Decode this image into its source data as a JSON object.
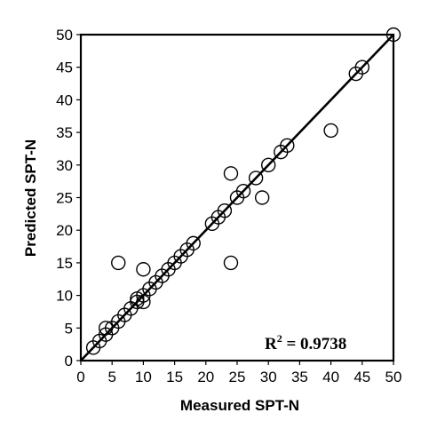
{
  "chart_data": {
    "type": "scatter",
    "xlabel": "Measured SPT-N",
    "ylabel": "Predicted SPT-N",
    "xlim": [
      0,
      50
    ],
    "ylim": [
      0,
      50
    ],
    "xticks": [
      "0",
      "5",
      "10",
      "15",
      "20",
      "25",
      "30",
      "35",
      "40",
      "45",
      "50"
    ],
    "yticks": [
      "0",
      "5",
      "10",
      "15",
      "20",
      "25",
      "30",
      "35",
      "40",
      "45",
      "50"
    ],
    "grid": false,
    "annotation": {
      "prefix": "R",
      "superscript": "2",
      "suffix": " = 0.9738"
    },
    "reference_line": {
      "from": [
        0,
        0
      ],
      "to": [
        50,
        50
      ]
    },
    "series": [
      {
        "points": [
          [
            2,
            2
          ],
          [
            3,
            3
          ],
          [
            4,
            4
          ],
          [
            4,
            5
          ],
          [
            5,
            5
          ],
          [
            6,
            6
          ],
          [
            7,
            7
          ],
          [
            8,
            8
          ],
          [
            9,
            9
          ],
          [
            9,
            9.5
          ],
          [
            10,
            9
          ],
          [
            10,
            10
          ],
          [
            11,
            11
          ],
          [
            12,
            12
          ],
          [
            13,
            13
          ],
          [
            14,
            14
          ],
          [
            15,
            15
          ],
          [
            16,
            16
          ],
          [
            17,
            17
          ],
          [
            18,
            18
          ],
          [
            21,
            21
          ],
          [
            22,
            22
          ],
          [
            23,
            23
          ],
          [
            25,
            25
          ],
          [
            26,
            26
          ],
          [
            28,
            28
          ],
          [
            30,
            30
          ],
          [
            32,
            32
          ],
          [
            33,
            33
          ],
          [
            44,
            44
          ],
          [
            45,
            45
          ],
          [
            50,
            50
          ],
          [
            6,
            15
          ],
          [
            10,
            14
          ],
          [
            24,
            15
          ],
          [
            24,
            28.7
          ],
          [
            29,
            25
          ],
          [
            40,
            35.3
          ]
        ]
      }
    ]
  }
}
